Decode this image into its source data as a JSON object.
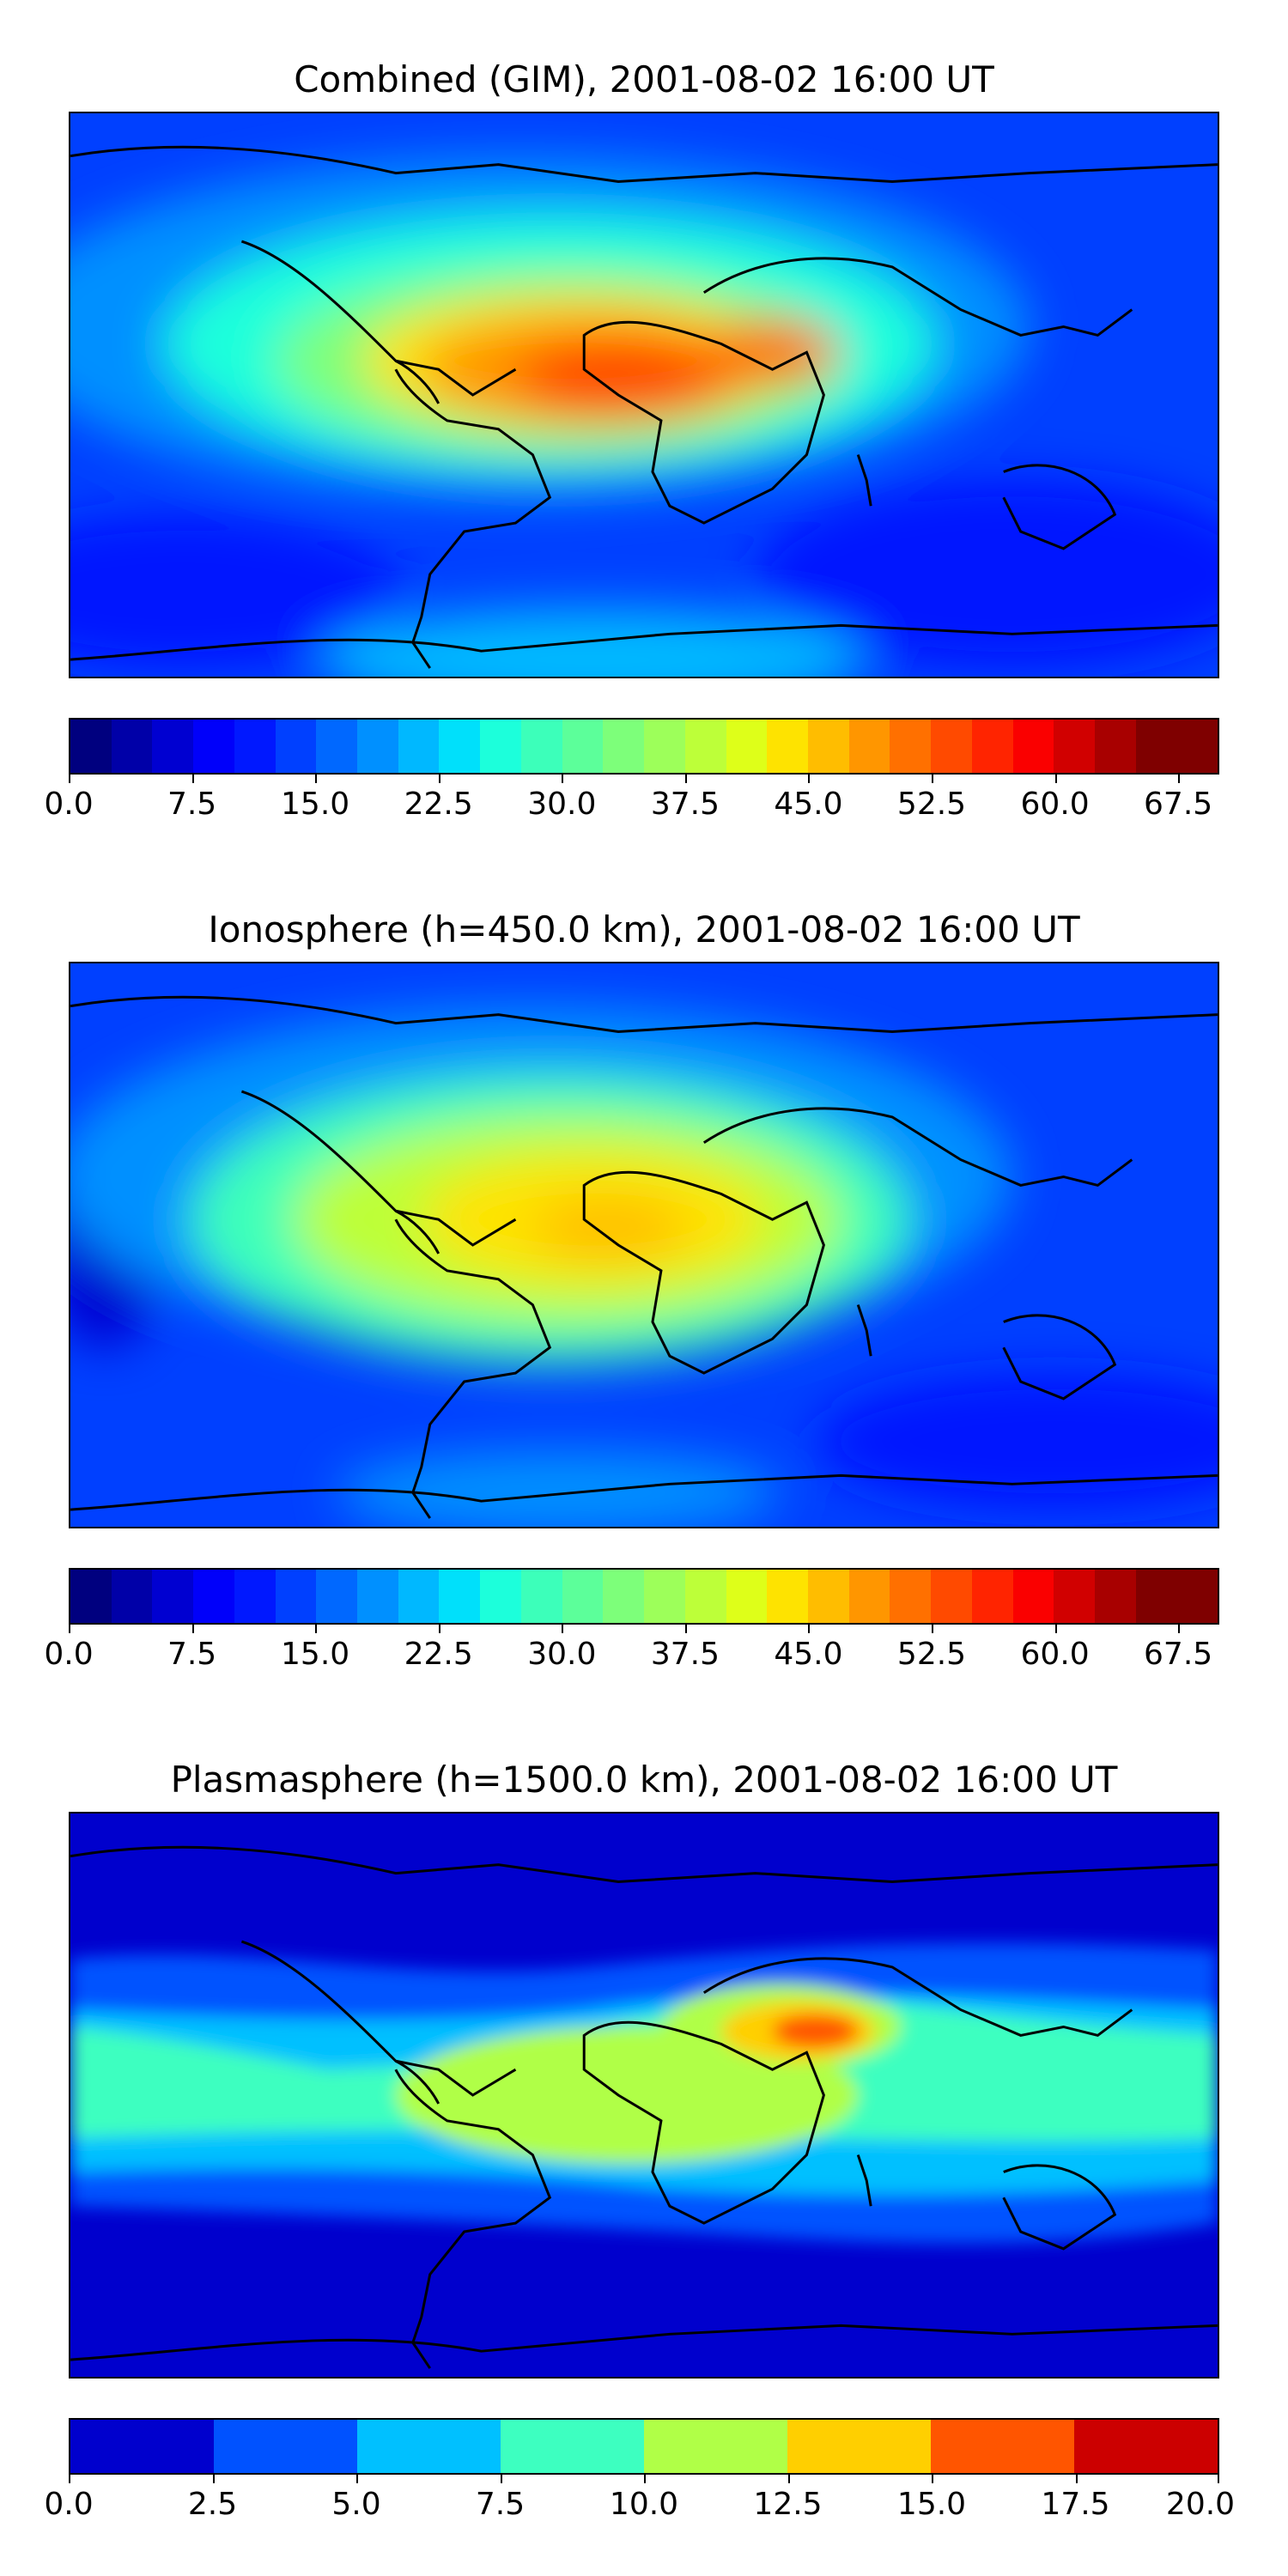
{
  "panels": [
    {
      "title": "Combined (GIM), 2001-08-02 16:00 UT",
      "colorbar": {
        "min": 0.0,
        "max": 70.0,
        "levels": 28,
        "tick_labels": [
          "0.0",
          "7.5",
          "15.0",
          "22.5",
          "30.0",
          "37.5",
          "45.0",
          "52.5",
          "60.0",
          "67.5"
        ]
      }
    },
    {
      "title": "Ionosphere  (h=450.0 km), 2001-08-02 16:00 UT",
      "colorbar": {
        "min": 0.0,
        "max": 70.0,
        "levels": 28,
        "tick_labels": [
          "0.0",
          "7.5",
          "15.0",
          "22.5",
          "30.0",
          "37.5",
          "45.0",
          "52.5",
          "60.0",
          "67.5"
        ]
      }
    },
    {
      "title": "Plasmasphere (h=1500.0 km), 2001-08-02 16:00 UT",
      "colorbar": {
        "min": 0.0,
        "max": 20.0,
        "levels": 8,
        "tick_labels": [
          "0.0",
          "2.5",
          "5.0",
          "7.5",
          "10.0",
          "12.5",
          "15.0",
          "17.5",
          "20.0"
        ]
      }
    }
  ],
  "colors": {
    "jet_28": [
      "#00007f",
      "#0000a8",
      "#0000d1",
      "#0000fa",
      "#0018ff",
      "#0040ff",
      "#0068ff",
      "#0090ff",
      "#00b8ff",
      "#00e0fb",
      "#1cffdb",
      "#3cffba",
      "#5cff9a",
      "#7dff7a",
      "#9dff5a",
      "#bdff39",
      "#deff19",
      "#fee300",
      "#ffbd00",
      "#ff9600",
      "#ff7000",
      "#ff4a00",
      "#ff2400",
      "#fa0000",
      "#d10000",
      "#a80000",
      "#7f0000",
      "#7f0000"
    ],
    "jet_8": [
      "#0000cd",
      "#0052ff",
      "#00c0ff",
      "#3dffc0",
      "#b0ff47",
      "#ffcf00",
      "#ff5500",
      "#cc0000"
    ]
  }
}
